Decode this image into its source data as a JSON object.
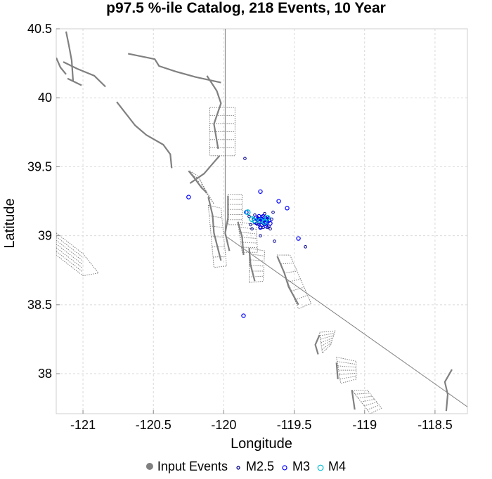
{
  "chart_data": {
    "type": "scatter",
    "title": "p97.5 %-ile Catalog, 218 Events, 10 Year",
    "xlabel": "Longitude",
    "ylabel": "Latitude",
    "xlim": [
      -121.19,
      -118.27
    ],
    "ylim": [
      37.71,
      40.5
    ],
    "x_ticks": [
      -121,
      -120.5,
      -120,
      -119.5,
      -119,
      -118.5
    ],
    "x_tick_labels": [
      "-121",
      "-120.5",
      "-120",
      "-119.5",
      "-119",
      "-118.5"
    ],
    "y_ticks": [
      38,
      38.5,
      39,
      39.5,
      40,
      40.5
    ],
    "y_tick_labels": [
      "38",
      "38.5",
      "39",
      "39.5",
      "40",
      "40.5"
    ],
    "grid": true,
    "legend_position": "bottom",
    "colors": {
      "faults": "#808080",
      "border": "#808080",
      "input_events": "#808080",
      "m25": "#00008b",
      "m3": "#0000ff",
      "m4": "#00bcd4"
    },
    "legend": [
      {
        "name": "Input Events",
        "marker": "filled-circle",
        "color": "#808080"
      },
      {
        "name": "M2.5",
        "marker": "small-circle",
        "color": "#00008b"
      },
      {
        "name": "M3",
        "marker": "circle",
        "color": "#0000ff"
      },
      {
        "name": "M4",
        "marker": "large-circle",
        "color": "#00bcd4"
      }
    ],
    "series": [
      {
        "name": "M2.5",
        "points": [
          [
            -119.85,
            39.56
          ],
          [
            -119.82,
            39.14
          ],
          [
            -119.79,
            39.12
          ],
          [
            -119.78,
            39.15
          ],
          [
            -119.77,
            39.09
          ],
          [
            -119.76,
            39.13
          ],
          [
            -119.75,
            39.08
          ],
          [
            -119.74,
            39.06
          ],
          [
            -119.73,
            39.14
          ],
          [
            -119.72,
            39.06
          ],
          [
            -119.71,
            39.11
          ],
          [
            -119.7,
            39.08
          ],
          [
            -119.69,
            39.1
          ],
          [
            -119.68,
            39.13
          ],
          [
            -119.68,
            39.07
          ],
          [
            -119.66,
            39.12
          ],
          [
            -119.65,
            39.17
          ],
          [
            -119.64,
            38.96
          ],
          [
            -119.74,
            39.0
          ],
          [
            -119.67,
            39.05
          ],
          [
            -119.8,
            39.05
          ],
          [
            -119.71,
            39.16
          ],
          [
            -119.76,
            39.11
          ],
          [
            -119.73,
            39.1
          ],
          [
            -119.7,
            39.13
          ],
          [
            -119.42,
            38.92
          ],
          [
            -119.81,
            39.08
          ],
          [
            -119.74,
            39.12
          ],
          [
            -119.69,
            39.06
          ],
          [
            -119.72,
            39.09
          ]
        ]
      },
      {
        "name": "M3",
        "points": [
          [
            -120.25,
            39.28
          ],
          [
            -119.86,
            38.42
          ],
          [
            -119.74,
            39.32
          ],
          [
            -119.61,
            39.25
          ],
          [
            -119.55,
            39.2
          ],
          [
            -119.47,
            38.98
          ],
          [
            -119.84,
            39.17
          ],
          [
            -119.78,
            39.1
          ],
          [
            -119.75,
            39.12
          ],
          [
            -119.72,
            39.11
          ],
          [
            -119.7,
            39.1
          ],
          [
            -119.73,
            39.08
          ],
          [
            -119.71,
            39.13
          ],
          [
            -119.69,
            39.12
          ],
          [
            -119.74,
            39.06
          ],
          [
            -119.76,
            39.09
          ],
          [
            -119.67,
            39.09
          ],
          [
            -119.72,
            39.14
          ],
          [
            -119.7,
            39.07
          ],
          [
            -119.75,
            39.14
          ],
          [
            -119.68,
            39.11
          ],
          [
            -119.73,
            39.12
          ],
          [
            -119.71,
            39.09
          ],
          [
            -119.74,
            39.1
          ],
          [
            -119.77,
            39.13
          ]
        ]
      },
      {
        "name": "M4",
        "points": [
          [
            -119.83,
            39.17
          ],
          [
            -119.8,
            39.12
          ],
          [
            -119.78,
            39.11
          ],
          [
            -119.74,
            39.11
          ],
          [
            -119.71,
            39.1
          ],
          [
            -119.69,
            39.13
          ]
        ]
      }
    ],
    "faults_solid": [
      [
        [
          -121.12,
          40.48
        ],
        [
          -121.1,
          40.38
        ],
        [
          -121.08,
          40.27
        ],
        [
          -121.07,
          40.12
        ]
      ],
      [
        [
          -121.14,
          40.26
        ],
        [
          -121.04,
          40.21
        ],
        [
          -120.92,
          40.16
        ],
        [
          -120.84,
          40.08
        ]
      ],
      [
        [
          -121.19,
          40.29
        ],
        [
          -121.16,
          40.22
        ],
        [
          -121.12,
          40.17
        ]
      ],
      [
        [
          -121.11,
          40.14
        ],
        [
          -121.01,
          40.09
        ]
      ],
      [
        [
          -120.68,
          40.32
        ],
        [
          -120.49,
          40.28
        ],
        [
          -120.46,
          40.23
        ],
        [
          -120.34,
          40.19
        ],
        [
          -120.2,
          40.15
        ],
        [
          -120.02,
          40.11
        ]
      ],
      [
        [
          -120.76,
          39.97
        ],
        [
          -120.63,
          39.8
        ],
        [
          -120.55,
          39.73
        ],
        [
          -120.43,
          39.66
        ],
        [
          -120.38,
          39.59
        ],
        [
          -120.37,
          39.49
        ]
      ],
      [
        [
          -120.12,
          40.16
        ],
        [
          -120.05,
          40.05
        ],
        [
          -120.02,
          39.96
        ],
        [
          -120.07,
          39.81
        ],
        [
          -120.04,
          39.63
        ]
      ],
      [
        [
          -120.03,
          39.58
        ],
        [
          -120.14,
          39.45
        ],
        [
          -120.24,
          39.38
        ]
      ],
      [
        [
          -120.25,
          39.47
        ],
        [
          -120.21,
          39.42
        ],
        [
          -120.16,
          39.35
        ],
        [
          -120.12,
          39.31
        ]
      ],
      [
        [
          -120.11,
          39.28
        ],
        [
          -120.08,
          39.15
        ],
        [
          -120.07,
          39.02
        ],
        [
          -120.04,
          38.9
        ],
        [
          -120.02,
          38.82
        ]
      ],
      [
        [
          -119.97,
          39.29
        ],
        [
          -119.97,
          39.13
        ],
        [
          -119.99,
          39.02
        ],
        [
          -119.96,
          38.89
        ]
      ],
      [
        [
          -119.9,
          39.1
        ],
        [
          -119.87,
          38.99
        ],
        [
          -119.86,
          38.86
        ]
      ],
      [
        [
          -119.82,
          38.91
        ],
        [
          -119.81,
          38.79
        ],
        [
          -119.78,
          38.67
        ]
      ],
      [
        [
          -119.62,
          38.85
        ],
        [
          -119.57,
          38.73
        ],
        [
          -119.54,
          38.63
        ],
        [
          -119.47,
          38.5
        ]
      ],
      [
        [
          -119.32,
          38.28
        ],
        [
          -119.35,
          38.21
        ],
        [
          -119.33,
          38.14
        ]
      ],
      [
        [
          -119.2,
          38.08
        ],
        [
          -119.19,
          37.96
        ]
      ],
      [
        [
          -119.09,
          37.88
        ],
        [
          -119.07,
          37.74
        ]
      ],
      [
        [
          -118.38,
          38.03
        ],
        [
          -118.43,
          37.94
        ],
        [
          -118.41,
          37.85
        ],
        [
          -118.42,
          37.73
        ]
      ]
    ],
    "faults_dotted": [
      [
        [
          -120.1,
          39.93
        ],
        [
          -119.92,
          39.93
        ],
        [
          -119.92,
          39.58
        ],
        [
          -120.1,
          39.58
        ]
      ],
      [
        [
          -120.24,
          39.47
        ],
        [
          -120.18,
          39.43
        ],
        [
          -120.14,
          39.35
        ],
        [
          -120.07,
          39.23
        ]
      ],
      [
        [
          -119.97,
          39.3
        ],
        [
          -119.87,
          39.3
        ],
        [
          -119.87,
          39.08
        ],
        [
          -119.97,
          39.08
        ]
      ],
      [
        [
          -120.11,
          39.22
        ],
        [
          -120.02,
          39.2
        ],
        [
          -119.98,
          38.78
        ],
        [
          -120.07,
          38.77
        ]
      ],
      [
        [
          -119.9,
          39.1
        ],
        [
          -119.77,
          39.08
        ],
        [
          -119.76,
          38.88
        ],
        [
          -119.87,
          38.88
        ]
      ],
      [
        [
          -119.82,
          38.91
        ],
        [
          -119.71,
          38.89
        ],
        [
          -119.72,
          38.67
        ],
        [
          -119.82,
          38.66
        ]
      ],
      [
        [
          -119.62,
          38.86
        ],
        [
          -119.53,
          38.86
        ],
        [
          -119.38,
          38.51
        ],
        [
          -119.47,
          38.47
        ]
      ],
      [
        [
          -119.32,
          38.3
        ],
        [
          -119.21,
          38.31
        ],
        [
          -119.24,
          38.21
        ],
        [
          -119.3,
          38.15
        ]
      ],
      [
        [
          -119.2,
          38.12
        ],
        [
          -119.06,
          38.09
        ],
        [
          -119.06,
          37.96
        ],
        [
          -119.17,
          37.93
        ]
      ],
      [
        [
          -119.09,
          37.88
        ],
        [
          -118.98,
          37.88
        ],
        [
          -118.88,
          37.75
        ],
        [
          -118.96,
          37.71
        ]
      ],
      [
        [
          -121.19,
          39.02
        ],
        [
          -121.0,
          38.87
        ],
        [
          -120.89,
          38.73
        ],
        [
          -121.0,
          38.71
        ],
        [
          -121.19,
          38.86
        ]
      ]
    ],
    "border": [
      [
        [
          -119.99,
          40.5
        ],
        [
          -119.99,
          39.0
        ],
        [
          -118.27,
          37.76
        ]
      ]
    ]
  }
}
